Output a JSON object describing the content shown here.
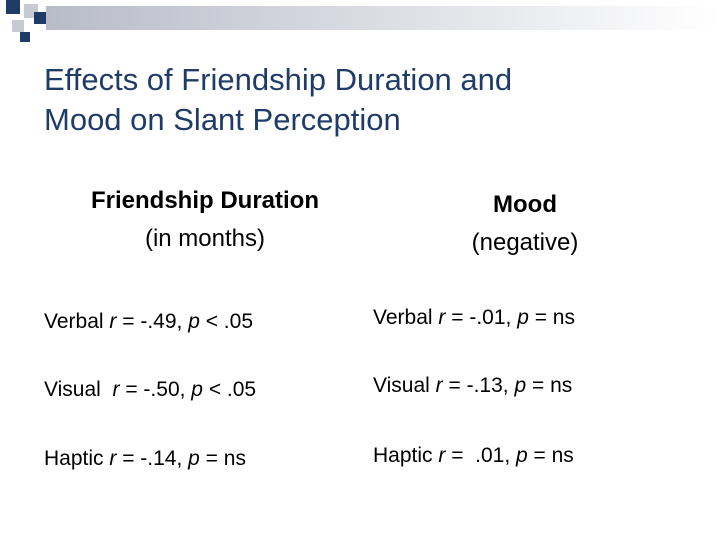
{
  "slide": {
    "title_line1": "Effects of Friendship Duration and",
    "title_line2": "Mood on Slant Perception"
  },
  "colors": {
    "title": "#1f3c68",
    "deco_blue": "#1f3c68",
    "deco_gray": "#c7cad3"
  },
  "columns": {
    "left": {
      "heading": "Friendship Duration",
      "subheading": "(in months)"
    },
    "right": {
      "heading": "Mood",
      "subheading": "(negative)"
    }
  },
  "left_rows": [
    {
      "label": "Verbal ",
      "r_sym": "r",
      "r_val": " = -.49, ",
      "p_sym": "p",
      "p_val": " < .05"
    },
    {
      "label": "Visual  ",
      "r_sym": "r",
      "r_val": " = -.50, ",
      "p_sym": "p",
      "p_val": " < .05"
    },
    {
      "label": "Haptic ",
      "r_sym": "r",
      "r_val": " = -.14, ",
      "p_sym": "p",
      "p_val": " = ns"
    }
  ],
  "right_rows": [
    {
      "label": "Verbal ",
      "r_sym": "r",
      "r_val": " = -.01, ",
      "p_sym": "p",
      "p_val": " = ns"
    },
    {
      "label": "Visual ",
      "r_sym": "r",
      "r_val": " = -.13, ",
      "p_sym": "p",
      "p_val": " = ns"
    },
    {
      "label": "Haptic ",
      "r_sym": "r",
      "r_val": " =  .01, ",
      "p_sym": "p",
      "p_val": " = ns"
    }
  ]
}
